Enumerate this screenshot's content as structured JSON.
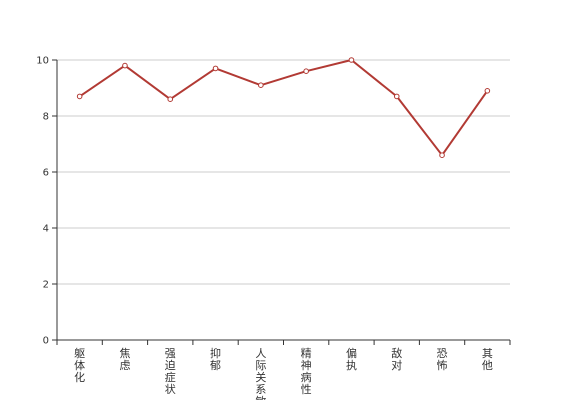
{
  "chart_data": {
    "type": "line",
    "title": "",
    "xlabel": "",
    "ylabel": "",
    "categories": [
      "躯体化",
      "焦虑",
      "强迫症状",
      "抑郁",
      "人际关系敏感",
      "精神病性",
      "偏执",
      "敌对",
      "恐怖",
      "其他"
    ],
    "series": [
      {
        "values": [
          8.7,
          9.8,
          8.6,
          9.7,
          9.1,
          9.6,
          10.0,
          8.7,
          6.6,
          8.9
        ]
      }
    ],
    "ylim": [
      0,
      10
    ],
    "yticks": [
      0,
      2,
      4,
      6,
      8,
      10
    ],
    "grid": "horizontal",
    "colors": {
      "line": "#b23a34",
      "grid": "#cccccc",
      "axis": "#333333",
      "marker_fill": "#ffffff"
    }
  }
}
